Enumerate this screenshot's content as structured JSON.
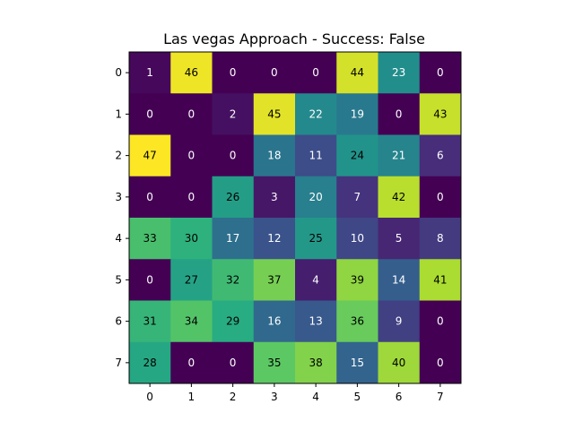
{
  "chart_data": {
    "type": "heatmap",
    "title": "Las vegas Approach - Success: False",
    "xlabel": "",
    "ylabel": "",
    "x_ticks": [
      "0",
      "1",
      "2",
      "3",
      "4",
      "5",
      "6",
      "7"
    ],
    "y_ticks": [
      "0",
      "1",
      "2",
      "3",
      "4",
      "5",
      "6",
      "7"
    ],
    "colormap": "viridis",
    "value_range": [
      0,
      47
    ],
    "grid": false,
    "legend": "none",
    "values": [
      [
        1,
        46,
        0,
        0,
        0,
        44,
        23,
        0
      ],
      [
        0,
        0,
        2,
        45,
        22,
        19,
        0,
        43
      ],
      [
        47,
        0,
        0,
        18,
        11,
        24,
        21,
        6
      ],
      [
        0,
        0,
        26,
        3,
        20,
        7,
        42,
        0
      ],
      [
        33,
        30,
        17,
        12,
        25,
        10,
        5,
        8
      ],
      [
        0,
        27,
        32,
        37,
        4,
        39,
        14,
        41
      ],
      [
        31,
        34,
        29,
        16,
        13,
        36,
        9,
        0
      ],
      [
        28,
        0,
        0,
        35,
        38,
        15,
        40,
        0
      ]
    ]
  }
}
